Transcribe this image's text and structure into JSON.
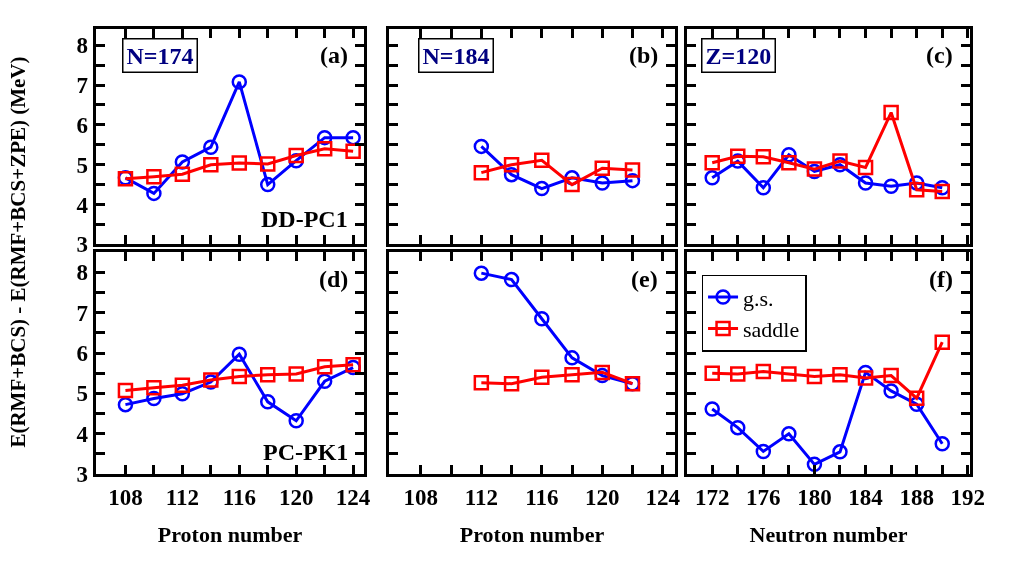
{
  "chart_data": [
    {
      "type": "line",
      "ylabel": "E(RMF+BCS) - E(RMF+BCS+ZPE) (MeV)",
      "annotations": [
        "N=174",
        "(a)",
        "DD-PC1"
      ],
      "tick_labels": "y",
      "legend": false,
      "x": [
        108,
        110,
        112,
        114,
        116,
        118,
        120,
        122,
        124
      ],
      "xlim": [
        105.9,
        124.8
      ],
      "xticks": [
        108,
        {
          "value": 110,
          "label": null
        },
        112,
        {
          "value": 114,
          "label": null
        },
        116,
        {
          "value": 118,
          "label": null
        },
        120,
        {
          "value": 122,
          "label": null
        },
        124
      ],
      "ylim": [
        3,
        8.4
      ],
      "yticks": [
        3,
        {
          "value": 3.5,
          "label": null
        },
        4,
        {
          "value": 4.5,
          "label": null
        },
        5,
        {
          "value": 5.5,
          "label": null
        },
        6,
        {
          "value": 6.5,
          "label": null
        },
        7,
        {
          "value": 7.5,
          "label": null
        },
        8
      ],
      "series": [
        {
          "color": "#0000ff",
          "marker": "circle",
          "values": [
            4.67,
            4.28,
            5.07,
            5.44,
            7.08,
            4.5,
            5.1,
            5.68,
            5.68
          ]
        },
        {
          "color": "#ff0000",
          "marker": "square",
          "values": [
            4.65,
            4.7,
            4.76,
            5.0,
            5.04,
            5.02,
            5.23,
            5.4,
            5.34
          ]
        }
      ]
    },
    {
      "type": "line",
      "annotations": [
        "N=184",
        "(b)"
      ],
      "tick_labels": false,
      "legend": false,
      "x": [
        112,
        114,
        116,
        118,
        120,
        122
      ],
      "xlim": [
        105.9,
        124.8
      ],
      "xticks": [
        108,
        {
          "value": 110,
          "label": null
        },
        112,
        {
          "value": 114,
          "label": null
        },
        116,
        {
          "value": 118,
          "label": null
        },
        120,
        {
          "value": 122,
          "label": null
        },
        124
      ],
      "ylim": [
        3,
        8.4
      ],
      "yticks": [
        3,
        {
          "value": 3.5,
          "label": null
        },
        4,
        {
          "value": 4.5,
          "label": null
        },
        5,
        {
          "value": 5.5,
          "label": null
        },
        6,
        {
          "value": 6.5,
          "label": null
        },
        7,
        {
          "value": 7.5,
          "label": null
        },
        8
      ],
      "series": [
        {
          "color": "#0000ff",
          "marker": "circle",
          "values": [
            5.46,
            4.75,
            4.4,
            4.67,
            4.54,
            4.6
          ]
        },
        {
          "color": "#ff0000",
          "marker": "square",
          "values": [
            4.8,
            5.0,
            5.11,
            4.5,
            4.91,
            4.87
          ]
        }
      ]
    },
    {
      "type": "line",
      "annotations": [
        "Z=120",
        "(c)"
      ],
      "tick_labels": false,
      "legend": false,
      "x": [
        172,
        174,
        176,
        178,
        180,
        182,
        184,
        186,
        188,
        190
      ],
      "xlim": [
        170,
        192.2
      ],
      "xticks": [
        172,
        {
          "value": 174,
          "label": null
        },
        176,
        {
          "value": 178,
          "label": null
        },
        180,
        {
          "value": 182,
          "label": null
        },
        184,
        {
          "value": 186,
          "label": null
        },
        188,
        {
          "value": 190,
          "label": null
        },
        192
      ],
      "ylim": [
        3,
        8.4
      ],
      "yticks": [
        3,
        {
          "value": 3.5,
          "label": null
        },
        4,
        {
          "value": 4.5,
          "label": null
        },
        5,
        {
          "value": 5.5,
          "label": null
        },
        6,
        {
          "value": 6.5,
          "label": null
        },
        7,
        {
          "value": 7.5,
          "label": null
        },
        8
      ],
      "series": [
        {
          "color": "#0000ff",
          "marker": "circle",
          "values": [
            4.67,
            5.09,
            4.42,
            5.25,
            4.83,
            5.0,
            4.54,
            4.46,
            4.54,
            4.42
          ]
        },
        {
          "color": "#ff0000",
          "marker": "square",
          "values": [
            5.05,
            5.21,
            5.2,
            5.05,
            4.89,
            5.09,
            4.93,
            6.31,
            4.37,
            4.33
          ]
        }
      ]
    },
    {
      "type": "line",
      "xlabel": "Proton number",
      "annotations": [
        "(d)",
        "PC-PK1"
      ],
      "legend": false,
      "x": [
        108,
        110,
        112,
        114,
        116,
        118,
        120,
        122,
        124
      ],
      "xlim": [
        105.9,
        124.8
      ],
      "xticks": [
        108,
        {
          "value": 110,
          "label": null
        },
        112,
        {
          "value": 114,
          "label": null
        },
        116,
        {
          "value": 118,
          "label": null
        },
        120,
        {
          "value": 122,
          "label": null
        },
        124
      ],
      "ylim": [
        3,
        8.5
      ],
      "yticks": [
        3,
        {
          "value": 3.5,
          "label": null
        },
        4,
        {
          "value": 4.5,
          "label": null
        },
        5,
        {
          "value": 5.5,
          "label": null
        },
        6,
        {
          "value": 6.5,
          "label": null
        },
        7,
        {
          "value": 7.5,
          "label": null
        },
        8
      ],
      "series": [
        {
          "color": "#0000ff",
          "marker": "circle",
          "values": [
            4.72,
            4.87,
            4.99,
            5.28,
            5.97,
            4.79,
            4.32,
            5.3,
            5.64
          ]
        },
        {
          "color": "#ff0000",
          "marker": "square",
          "values": [
            5.07,
            5.14,
            5.2,
            5.33,
            5.42,
            5.46,
            5.48,
            5.66,
            5.71
          ]
        }
      ]
    },
    {
      "type": "line",
      "xlabel": "Proton number",
      "annotations": [
        "(e)"
      ],
      "tick_labels": "x",
      "legend": false,
      "x": [
        112,
        114,
        116,
        118,
        120,
        122
      ],
      "xlim": [
        105.9,
        124.8
      ],
      "xticks": [
        108,
        {
          "value": 110,
          "label": null
        },
        112,
        {
          "value": 114,
          "label": null
        },
        116,
        {
          "value": 118,
          "label": null
        },
        120,
        {
          "value": 122,
          "label": null
        },
        124
      ],
      "ylim": [
        3,
        8.5
      ],
      "yticks": [
        3,
        {
          "value": 3.5,
          "label": null
        },
        4,
        {
          "value": 4.5,
          "label": null
        },
        5,
        {
          "value": 5.5,
          "label": null
        },
        6,
        {
          "value": 6.5,
          "label": null
        },
        7,
        {
          "value": 7.5,
          "label": null
        },
        8
      ],
      "series": [
        {
          "color": "#0000ff",
          "marker": "circle",
          "values": [
            7.98,
            7.82,
            6.85,
            5.88,
            5.44,
            5.24
          ]
        },
        {
          "color": "#ff0000",
          "marker": "square",
          "values": [
            5.26,
            5.24,
            5.4,
            5.46,
            5.52,
            5.24
          ]
        }
      ]
    },
    {
      "type": "line",
      "xlabel": "Neutron number",
      "annotations": [
        "(f)"
      ],
      "tick_labels": "x",
      "legend": "top left",
      "x": [
        172,
        174,
        176,
        178,
        180,
        182,
        184,
        186,
        188,
        190
      ],
      "xlim": [
        170,
        192.2
      ],
      "xticks": [
        172,
        {
          "value": 174,
          "label": null
        },
        176,
        {
          "value": 178,
          "label": null
        },
        180,
        {
          "value": 182,
          "label": null
        },
        184,
        {
          "value": 186,
          "label": null
        },
        188,
        {
          "value": 190,
          "label": null
        },
        192
      ],
      "ylim": [
        3,
        8.5
      ],
      "yticks": [
        3,
        {
          "value": 3.5,
          "label": null
        },
        4,
        {
          "value": 4.5,
          "label": null
        },
        5,
        {
          "value": 5.5,
          "label": null
        },
        6,
        {
          "value": 6.5,
          "label": null
        },
        7,
        {
          "value": 7.5,
          "label": null
        },
        8
      ],
      "series": [
        {
          "name": "g.s.",
          "color": "#0000ff",
          "marker": "circle",
          "values": [
            4.61,
            4.15,
            3.56,
            4.0,
            3.24,
            3.55,
            5.52,
            5.06,
            4.73,
            3.75
          ]
        },
        {
          "name": "saddle",
          "color": "#ff0000",
          "marker": "square",
          "values": [
            5.5,
            5.48,
            5.54,
            5.48,
            5.42,
            5.46,
            5.38,
            5.44,
            4.88,
            6.27
          ]
        }
      ]
    }
  ]
}
